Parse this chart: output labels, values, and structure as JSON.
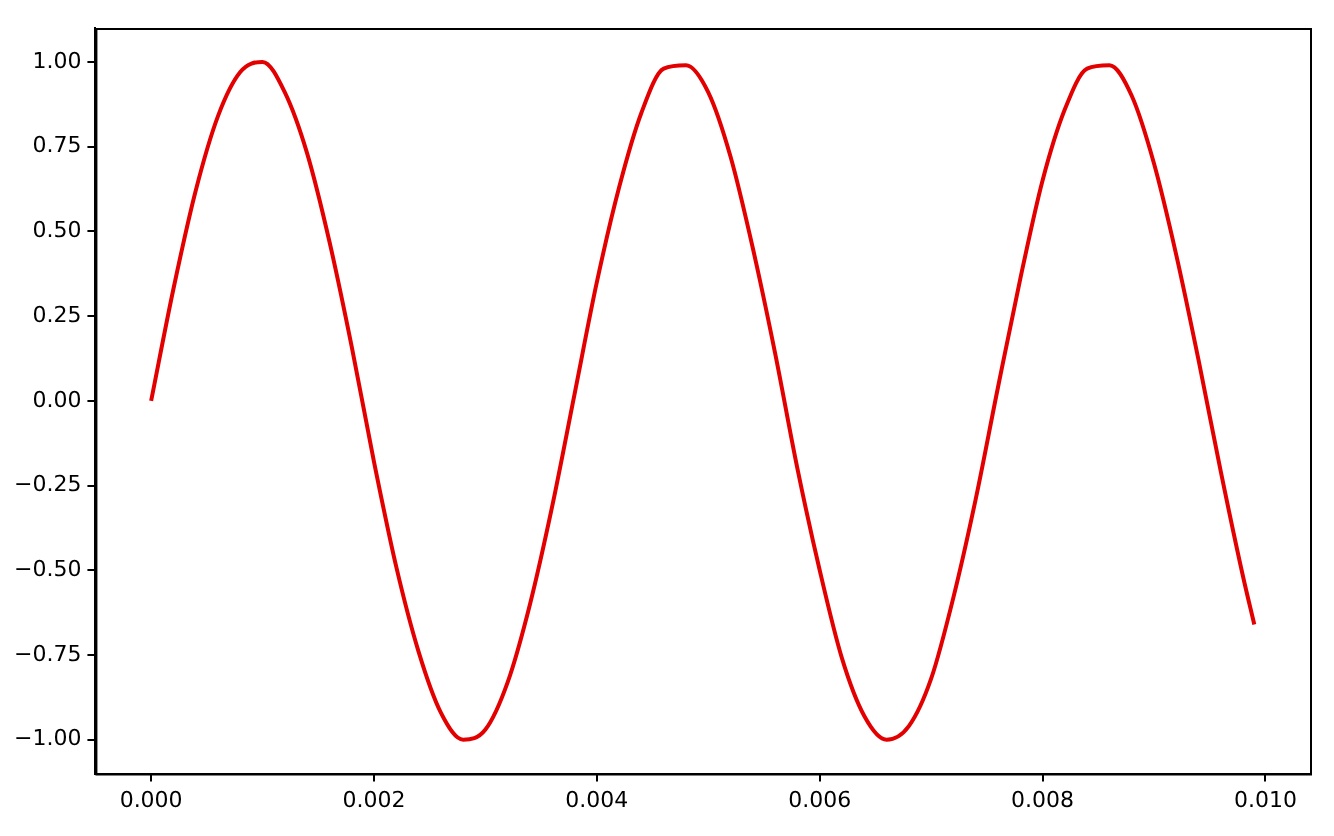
{
  "chart_data": {
    "type": "line",
    "x": [
      0,
      0.0002,
      0.0004,
      0.0006,
      0.0008,
      0.001,
      0.0012,
      0.0014,
      0.0016,
      0.0018,
      0.002,
      0.0022,
      0.0024,
      0.0026,
      0.0028,
      0.003,
      0.0032,
      0.0034,
      0.0036,
      0.0038,
      0.004,
      0.0042,
      0.0044,
      0.0046,
      0.0048,
      0.005,
      0.0052,
      0.0054,
      0.0056,
      0.0058,
      0.006,
      0.0062,
      0.0064,
      0.0066,
      0.0068,
      0.007,
      0.0072,
      0.0074,
      0.0076,
      0.0078,
      0.008,
      0.0082,
      0.0084,
      0.0086,
      0.0088,
      0.009,
      0.0092,
      0.0094,
      0.0096,
      0.0098,
      0.0099
    ],
    "series": [
      {
        "color": "#e30000",
        "values": [
          0,
          0.33,
          0.62,
          0.84,
          0.97,
          1.0,
          0.91,
          0.73,
          0.47,
          0.16,
          -0.18,
          -0.49,
          -0.74,
          -0.92,
          -1.0,
          -0.97,
          -0.83,
          -0.6,
          -0.31,
          0.02,
          0.35,
          0.63,
          0.85,
          0.98,
          0.99,
          0.91,
          0.72,
          0.45,
          0.14,
          -0.2,
          -0.5,
          -0.76,
          -0.93,
          -1.0,
          -0.96,
          -0.82,
          -0.58,
          -0.29,
          0.04,
          0.36,
          0.65,
          0.86,
          0.98,
          0.99,
          0.9,
          0.7,
          0.43,
          0.12,
          -0.21,
          -0.52,
          -0.66
        ]
      }
    ],
    "xlim": [
      -0.0005,
      0.0104
    ],
    "xticks": [
      {
        "value": 0,
        "label": "0.000"
      },
      {
        "value": 0.002,
        "label": "0.002"
      },
      {
        "value": 0.004,
        "label": "0.004"
      },
      {
        "value": 0.006,
        "label": "0.006"
      },
      {
        "value": 0.008,
        "label": "0.008"
      },
      {
        "value": 0.01,
        "label": "0.010"
      }
    ],
    "ylim": [
      -1.1,
      1.1
    ],
    "yticks": [
      {
        "value": -1,
        "label": "−1.00"
      },
      {
        "value": -0.75,
        "label": "−0.75"
      },
      {
        "value": -0.5,
        "label": "−0.50"
      },
      {
        "value": -0.25,
        "label": "−0.25"
      },
      {
        "value": 0,
        "label": "0.00"
      },
      {
        "value": 0.25,
        "label": "0.25"
      },
      {
        "value": 0.5,
        "label": "0.50"
      },
      {
        "value": 0.75,
        "label": "0.75"
      },
      {
        "value": 1,
        "label": "1.00"
      }
    ],
    "grid": false,
    "legend": false,
    "marker": "none",
    "line_style": "solid"
  }
}
